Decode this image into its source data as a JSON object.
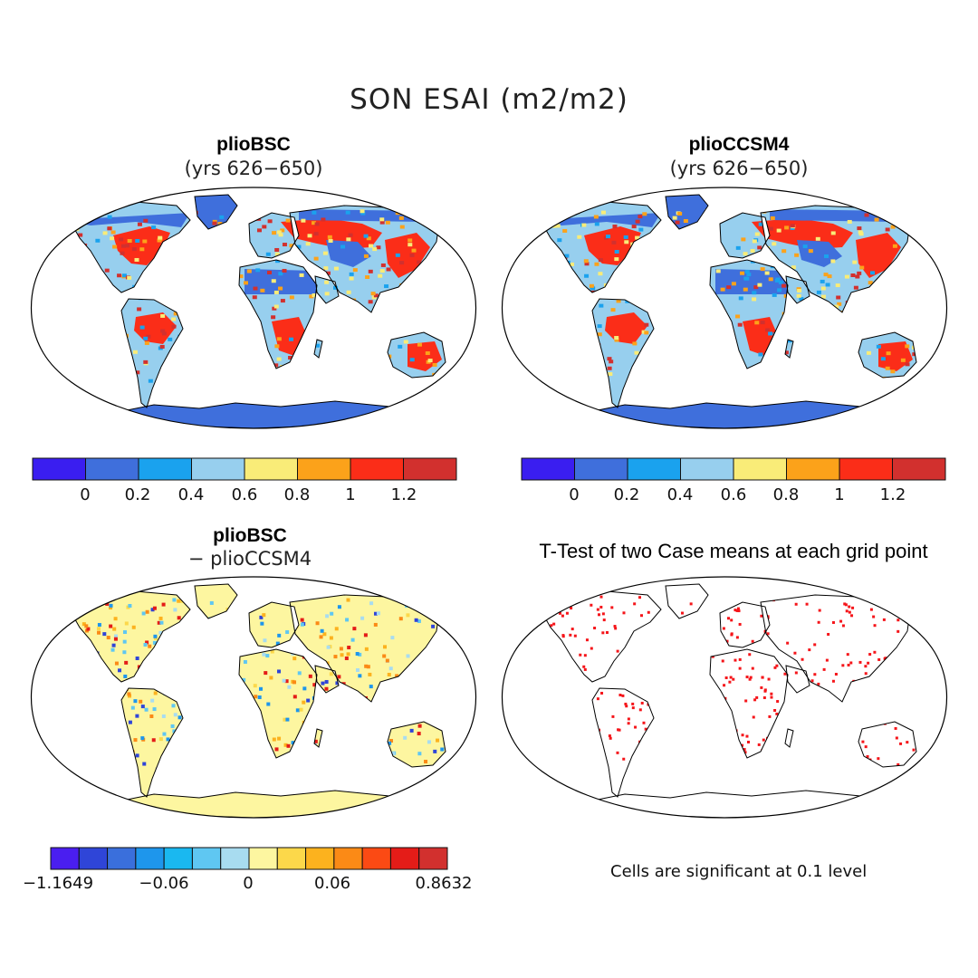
{
  "main_title": "SON ESAI (m2/m2)",
  "panels": [
    {
      "title": "plioBSC",
      "subtitle": "(yrs 626−650)"
    },
    {
      "title": "plioCCSM4",
      "subtitle": "(yrs 626−650)"
    },
    {
      "title": "plioBSC",
      "subtitle": "− plioCCSM4"
    },
    {
      "title": "T-Test of two Case means at each grid point",
      "subtitle": ""
    }
  ],
  "colorbar_top": {
    "colors": [
      "#3a1ef0",
      "#3f6fdc",
      "#1aa2ee",
      "#97cfee",
      "#f9ec78",
      "#fca21a",
      "#fb2d18",
      "#d2302e"
    ],
    "tick_labels": [
      "0",
      "0.2",
      "0.4",
      "0.6",
      "0.8",
      "1",
      "1.2"
    ]
  },
  "colorbar_diff": {
    "colors": [
      "#4a1ef0",
      "#2f45d8",
      "#3a6fdc",
      "#1e96ec",
      "#1ab8f0",
      "#5fc7f2",
      "#a8dcf0",
      "#fdf6a0",
      "#fcd84a",
      "#fcb21e",
      "#fb8a16",
      "#fb4a14",
      "#e41c18",
      "#d2302e"
    ],
    "tick_labels": [
      "−1.1649",
      "−0.06",
      "0",
      "0.06",
      "0.8632"
    ]
  },
  "significance_note": "Cells are significant at 0.1 level"
}
